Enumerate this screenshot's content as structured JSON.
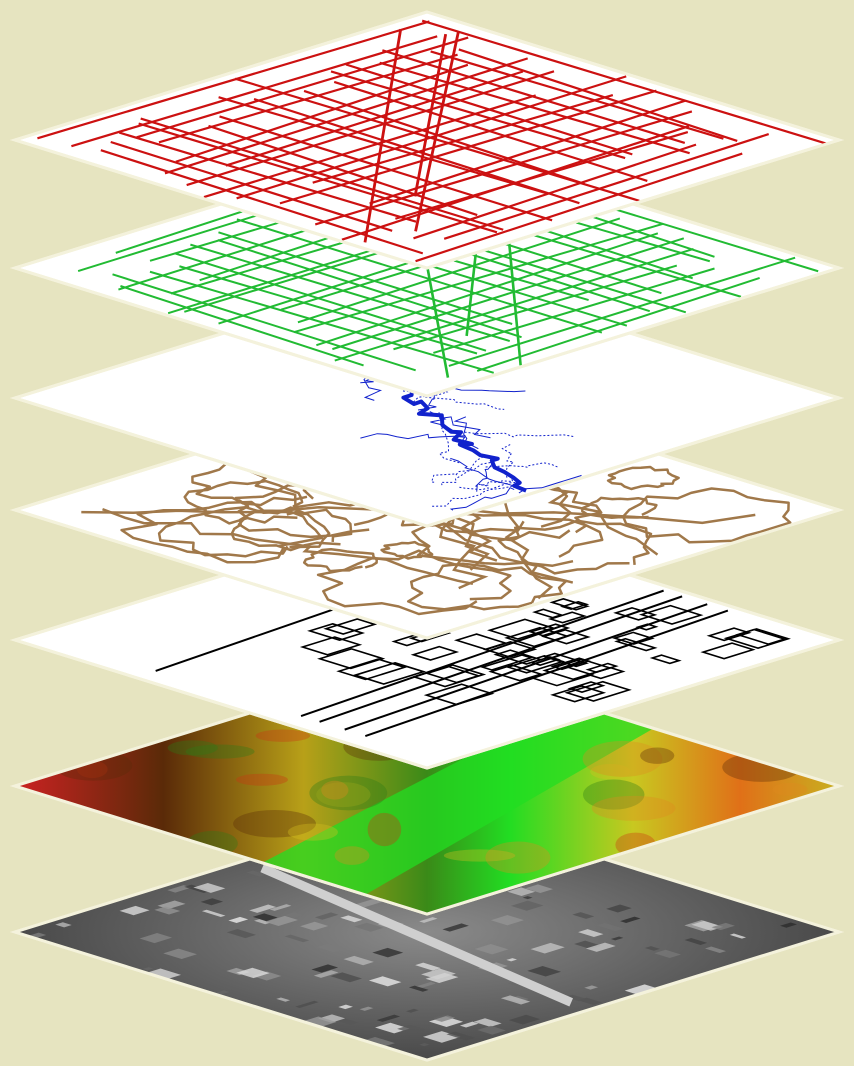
{
  "background_color": "#e6e4c0",
  "layer_edge_color": "#f4f2dc",
  "layers": [
    {
      "id": "streets",
      "fill": "#ffffff",
      "line_color": "#cc1111",
      "pattern": "grid-network"
    },
    {
      "id": "utility-network",
      "fill": "#ffffff",
      "line_color": "#22bb33",
      "pattern": "grid-network"
    },
    {
      "id": "hydrography",
      "fill": "#ffffff",
      "line_color": "#1122cc",
      "pattern": "river-network"
    },
    {
      "id": "contours",
      "fill": "#ffffff",
      "line_color": "#a0784a",
      "pattern": "contour-curves"
    },
    {
      "id": "parcels",
      "fill": "#ffffff",
      "line_color": "#000000",
      "pattern": "parcel-blocks"
    },
    {
      "id": "elevation",
      "fill": "#6a8a20",
      "line_color": "#22dd22",
      "pattern": "elevation-raster"
    },
    {
      "id": "aerial-imagery",
      "fill": "#555555",
      "line_color": "#bbbbbb",
      "pattern": "aerial-photo"
    }
  ]
}
